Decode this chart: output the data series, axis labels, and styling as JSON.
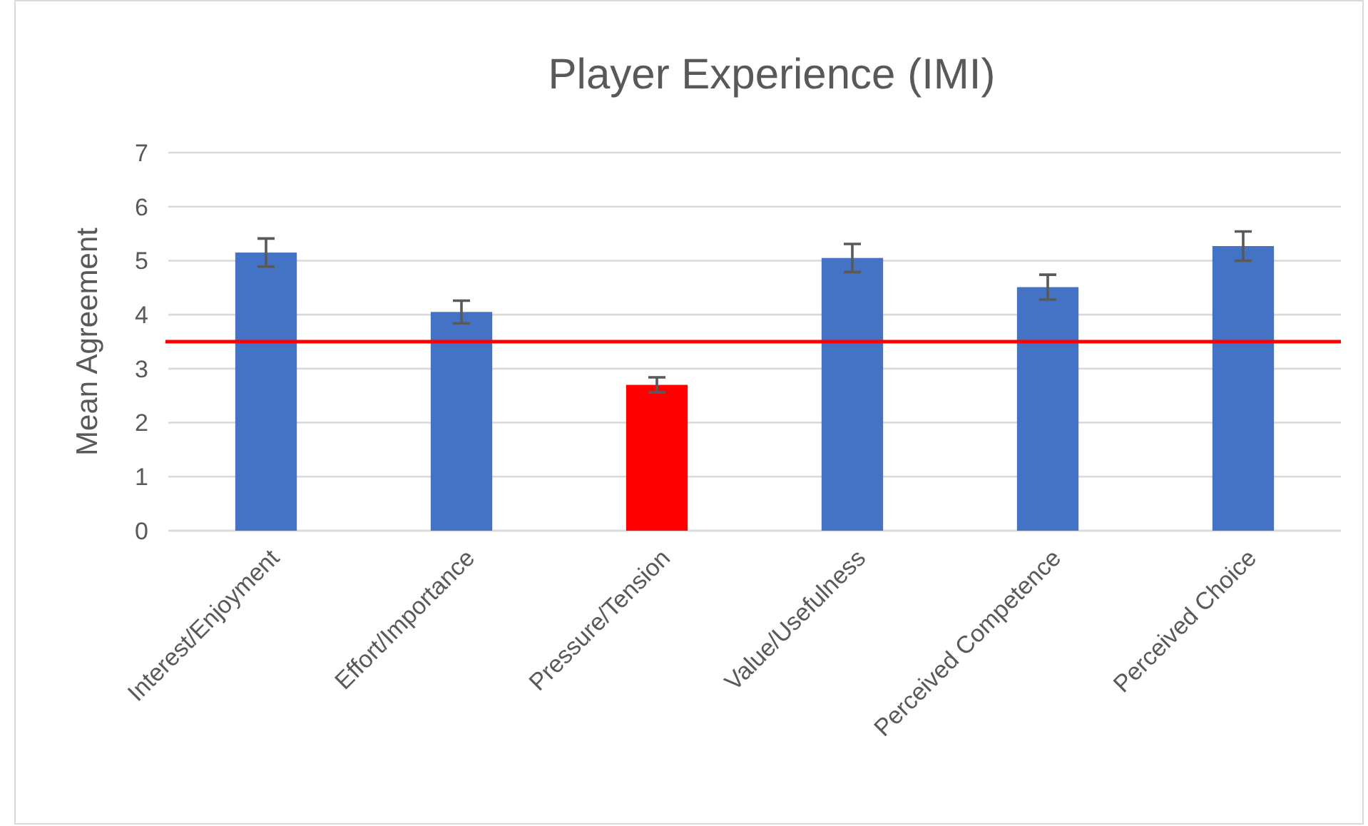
{
  "chart_data": {
    "type": "bar",
    "title": "Player Experience (IMI)",
    "ylabel": "Mean Agreement",
    "categories": [
      "Interest/Enjoyment",
      "Effort/Importance",
      "Pressure/Tension",
      "Value/Usefulness",
      "Perceived Competence",
      "Perceived Choice"
    ],
    "values": [
      5.15,
      4.05,
      2.7,
      5.05,
      4.51,
      5.27
    ],
    "colors": [
      "#4472c4",
      "#4472c4",
      "#ff0000",
      "#4472c4",
      "#4472c4",
      "#4472c4"
    ],
    "errors": [
      0.26,
      0.21,
      0.14,
      0.26,
      0.23,
      0.27
    ],
    "ylim": [
      0,
      7
    ],
    "yticks": [
      0,
      1,
      2,
      3,
      4,
      5,
      6,
      7
    ],
    "grid": "y",
    "ref_lines": [
      {
        "axis": "y",
        "value": 3.5,
        "color": "#ff0000"
      }
    ]
  }
}
